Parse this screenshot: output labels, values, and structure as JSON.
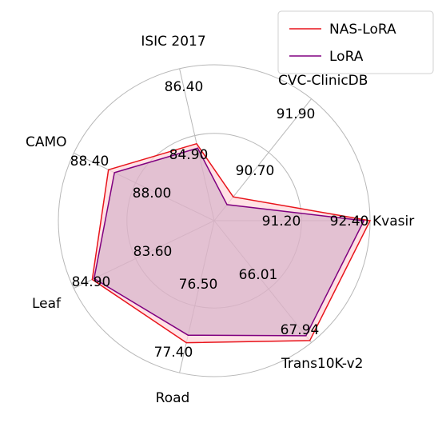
{
  "chart_data": {
    "type": "radar",
    "categories": [
      "Kvasir",
      "Trans10K-v2",
      "Road",
      "Leaf",
      "CAMO",
      "ISIC 2017",
      "CVC-ClinicDB"
    ],
    "series": [
      {
        "name": "NAS-LoRA",
        "values": [
          92.4,
          67.94,
          77.4,
          84.9,
          88.4,
          86.4,
          91.9
        ],
        "labels": [
          "92.40",
          "67.94",
          "77.40",
          "84.90",
          "88.40",
          "86.40",
          "91.90"
        ],
        "line_color": "#e8141b",
        "fill_color": "#ffd6da",
        "fill_opacity": 0.7
      },
      {
        "name": "LoRA",
        "values": [
          91.2,
          66.01,
          76.5,
          83.6,
          88.0,
          84.9,
          90.7
        ],
        "labels": [
          "91.20",
          "66.01",
          "76.50",
          "83.60",
          "88.00",
          "84.90",
          "90.70"
        ],
        "line_color": "#800080",
        "fill_color": "#b085b0",
        "fill_opacity": 0.35
      }
    ],
    "legend": "top-right",
    "grid": true,
    "grid_color": "#b8b8b8"
  }
}
